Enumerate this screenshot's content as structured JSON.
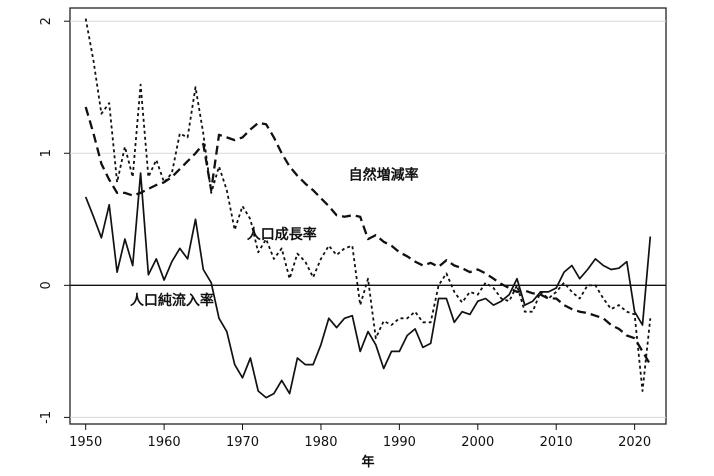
{
  "chart_data": {
    "type": "line",
    "title": "",
    "xlabel": "年",
    "ylabel": "",
    "xlim": [
      1948,
      2024
    ],
    "ylim": [
      -1.05,
      2.1
    ],
    "x_ticks": [
      1950,
      1960,
      1970,
      1980,
      1990,
      2000,
      2010,
      2020
    ],
    "y_ticks": [
      -1,
      0,
      1,
      2
    ],
    "grid": true,
    "reference_line_y": 0,
    "legend": "none (inline labels)",
    "series": [
      {
        "name": "自然増減率",
        "style": "dashed",
        "label_at": [
          1988,
          0.8
        ],
        "x": [
          1950,
          1951,
          1952,
          1953,
          1954,
          1955,
          1956,
          1957,
          1958,
          1959,
          1960,
          1961,
          1962,
          1963,
          1964,
          1965,
          1966,
          1967,
          1968,
          1969,
          1970,
          1971,
          1972,
          1973,
          1974,
          1975,
          1976,
          1977,
          1978,
          1979,
          1980,
          1981,
          1982,
          1983,
          1984,
          1985,
          1986,
          1987,
          1988,
          1989,
          1990,
          1991,
          1992,
          1993,
          1994,
          1995,
          1996,
          1997,
          1998,
          1999,
          2000,
          2001,
          2002,
          2003,
          2004,
          2005,
          2006,
          2007,
          2008,
          2009,
          2010,
          2011,
          2012,
          2013,
          2014,
          2015,
          2016,
          2017,
          2018,
          2019,
          2020,
          2021,
          2022
        ],
        "y": [
          1.35,
          1.15,
          0.92,
          0.8,
          0.7,
          0.7,
          0.68,
          0.7,
          0.73,
          0.76,
          0.78,
          0.82,
          0.88,
          0.94,
          1.0,
          1.07,
          0.72,
          1.14,
          1.12,
          1.1,
          1.12,
          1.18,
          1.23,
          1.22,
          1.12,
          1.0,
          0.9,
          0.83,
          0.77,
          0.72,
          0.66,
          0.6,
          0.53,
          0.52,
          0.53,
          0.52,
          0.35,
          0.38,
          0.33,
          0.3,
          0.25,
          0.22,
          0.18,
          0.15,
          0.17,
          0.14,
          0.19,
          0.15,
          0.13,
          0.1,
          0.12,
          0.09,
          0.05,
          0.01,
          -0.02,
          -0.05,
          -0.04,
          -0.06,
          -0.07,
          -0.1,
          -0.1,
          -0.15,
          -0.18,
          -0.2,
          -0.21,
          -0.23,
          -0.25,
          -0.3,
          -0.33,
          -0.38,
          -0.4,
          -0.5,
          -0.6
        ]
      },
      {
        "name": "人口成長率",
        "style": "dotted",
        "label_at": [
          1975,
          0.35
        ],
        "x": [
          1950,
          1951,
          1952,
          1953,
          1954,
          1955,
          1956,
          1957,
          1958,
          1959,
          1960,
          1961,
          1962,
          1963,
          1964,
          1965,
          1966,
          1967,
          1968,
          1969,
          1970,
          1971,
          1972,
          1973,
          1974,
          1975,
          1976,
          1977,
          1978,
          1979,
          1980,
          1981,
          1982,
          1983,
          1984,
          1985,
          1986,
          1987,
          1988,
          1989,
          1990,
          1991,
          1992,
          1993,
          1994,
          1995,
          1996,
          1997,
          1998,
          1999,
          2000,
          2001,
          2002,
          2003,
          2004,
          2005,
          2006,
          2007,
          2008,
          2009,
          2010,
          2011,
          2012,
          2013,
          2014,
          2015,
          2016,
          2017,
          2018,
          2019,
          2020,
          2021,
          2022
        ],
        "y": [
          2.02,
          1.7,
          1.3,
          1.38,
          0.78,
          1.05,
          0.82,
          1.52,
          0.82,
          0.95,
          0.78,
          0.85,
          1.15,
          1.12,
          1.5,
          1.15,
          0.7,
          0.9,
          0.72,
          0.42,
          0.6,
          0.5,
          0.25,
          0.35,
          0.2,
          0.28,
          0.05,
          0.24,
          0.18,
          0.06,
          0.2,
          0.3,
          0.23,
          0.28,
          0.3,
          -0.15,
          0.05,
          -0.4,
          -0.27,
          -0.3,
          -0.25,
          -0.25,
          -0.2,
          -0.28,
          -0.28,
          0.0,
          0.09,
          -0.05,
          -0.13,
          -0.05,
          -0.07,
          0.02,
          -0.02,
          -0.1,
          -0.12,
          0.0,
          -0.2,
          -0.2,
          -0.05,
          -0.1,
          -0.05,
          0.02,
          -0.05,
          -0.1,
          0.0,
          0.0,
          -0.1,
          -0.18,
          -0.15,
          -0.2,
          -0.22,
          -0.8,
          -0.25
        ]
      },
      {
        "name": "人口純流入率",
        "style": "solid",
        "label_at": [
          1961,
          -0.15
        ],
        "x": [
          1950,
          1951,
          1952,
          1953,
          1954,
          1955,
          1956,
          1957,
          1958,
          1959,
          1960,
          1961,
          1962,
          1963,
          1964,
          1965,
          1966,
          1967,
          1968,
          1969,
          1970,
          1971,
          1972,
          1973,
          1974,
          1975,
          1976,
          1977,
          1978,
          1979,
          1980,
          1981,
          1982,
          1983,
          1984,
          1985,
          1986,
          1987,
          1988,
          1989,
          1990,
          1991,
          1992,
          1993,
          1994,
          1995,
          1996,
          1997,
          1998,
          1999,
          2000,
          2001,
          2002,
          2003,
          2004,
          2005,
          2006,
          2007,
          2008,
          2009,
          2010,
          2011,
          2012,
          2013,
          2014,
          2015,
          2016,
          2017,
          2018,
          2019,
          2020,
          2021,
          2022
        ],
        "y": [
          0.67,
          0.52,
          0.36,
          0.61,
          0.1,
          0.35,
          0.15,
          0.85,
          0.08,
          0.2,
          0.04,
          0.18,
          0.28,
          0.2,
          0.5,
          0.12,
          0.02,
          -0.25,
          -0.35,
          -0.6,
          -0.7,
          -0.55,
          -0.8,
          -0.85,
          -0.82,
          -0.72,
          -0.82,
          -0.55,
          -0.6,
          -0.6,
          -0.45,
          -0.25,
          -0.32,
          -0.25,
          -0.23,
          -0.5,
          -0.35,
          -0.45,
          -0.63,
          -0.5,
          -0.5,
          -0.38,
          -0.33,
          -0.47,
          -0.44,
          -0.1,
          -0.1,
          -0.28,
          -0.2,
          -0.22,
          -0.12,
          -0.1,
          -0.15,
          -0.12,
          -0.07,
          0.05,
          -0.15,
          -0.12,
          -0.05,
          -0.05,
          -0.02,
          0.1,
          0.15,
          0.05,
          0.12,
          0.2,
          0.15,
          0.12,
          0.13,
          0.18,
          -0.2,
          -0.3,
          0.37
        ]
      }
    ]
  }
}
